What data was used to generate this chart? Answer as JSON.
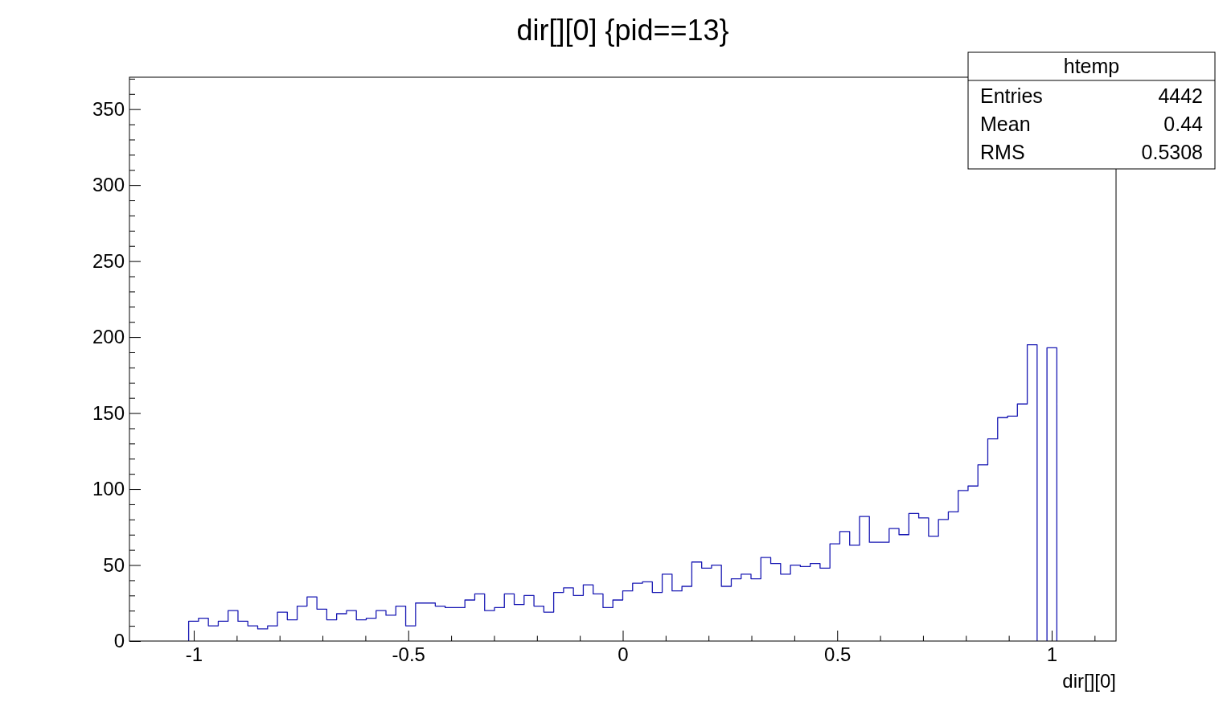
{
  "chart_data": {
    "type": "histogram",
    "title": "dir[][0] {pid==13}",
    "xlabel": "dir[][0]",
    "bins": [
      -1.012,
      -0.989,
      -0.966,
      -0.943,
      -0.92,
      -0.897,
      -0.874,
      -0.851,
      -0.828,
      -0.805,
      -0.782,
      -0.759,
      -0.736,
      -0.713,
      -0.69,
      -0.667,
      -0.644,
      -0.621,
      -0.598,
      -0.575,
      -0.552,
      -0.529,
      -0.506,
      -0.483,
      -0.46,
      -0.437,
      -0.414,
      -0.391,
      -0.368,
      -0.345,
      -0.322,
      -0.299,
      -0.276,
      -0.253,
      -0.23,
      -0.207,
      -0.184,
      -0.161,
      -0.138,
      -0.115,
      -0.092,
      -0.069,
      -0.046,
      -0.023,
      0,
      0.023,
      0.046,
      0.069,
      0.092,
      0.115,
      0.138,
      0.161,
      0.184,
      0.207,
      0.23,
      0.253,
      0.276,
      0.299,
      0.322,
      0.345,
      0.368,
      0.391,
      0.414,
      0.437,
      0.46,
      0.483,
      0.506,
      0.529,
      0.552,
      0.575,
      0.598,
      0.621,
      0.644,
      0.667,
      0.69,
      0.713,
      0.736,
      0.759,
      0.782,
      0.805,
      0.828,
      0.851,
      0.874,
      0.897,
      0.92,
      0.943,
      0.966,
      0.989,
      1.012
    ],
    "values": [
      13,
      15,
      10,
      13,
      20,
      13,
      10,
      8,
      10,
      19,
      14,
      23,
      29,
      21,
      14,
      18,
      20,
      14,
      15,
      20,
      17,
      23,
      10,
      25,
      25,
      23,
      22,
      22,
      27,
      31,
      20,
      22,
      31,
      24,
      30,
      23,
      19,
      32,
      35,
      30,
      37,
      31,
      22,
      27,
      33,
      38,
      39,
      32,
      44,
      33,
      36,
      52,
      48,
      50,
      36,
      41,
      44,
      41,
      55,
      51,
      44,
      50,
      49,
      51,
      48,
      64,
      72,
      63,
      82,
      65,
      65,
      74,
      70,
      84,
      81,
      69,
      80,
      85,
      99,
      102,
      116,
      133,
      147,
      148,
      156,
      195,
      null,
      193
    ],
    "color": "#1a1ab4",
    "xlim": [
      -1.15,
      1.15
    ],
    "xticks": [
      -1,
      {
        "value": -0.9,
        "label": null
      },
      {
        "value": -0.8,
        "label": null
      },
      {
        "value": -0.7,
        "label": null
      },
      {
        "value": -0.6,
        "label": null
      },
      -0.5,
      {
        "value": -0.4,
        "label": null
      },
      {
        "value": -0.3,
        "label": null
      },
      {
        "value": -0.2,
        "label": null
      },
      {
        "value": -0.1,
        "label": null
      },
      0,
      {
        "value": 0.1,
        "label": null
      },
      {
        "value": 0.2,
        "label": null
      },
      {
        "value": 0.3,
        "label": null
      },
      {
        "value": 0.4,
        "label": null
      },
      0.5,
      {
        "value": 0.6,
        "label": null
      },
      {
        "value": 0.7,
        "label": null
      },
      {
        "value": 0.8,
        "label": null
      },
      {
        "value": 0.9,
        "label": null
      },
      1,
      {
        "value": 1.1,
        "label": null
      }
    ],
    "ylim": [
      0,
      371
    ],
    "yticks": [
      0,
      {
        "value": 10,
        "label": null
      },
      {
        "value": 20,
        "label": null
      },
      {
        "value": 30,
        "label": null
      },
      {
        "value": 40,
        "label": null
      },
      50,
      {
        "value": 60,
        "label": null
      },
      {
        "value": 70,
        "label": null
      },
      {
        "value": 80,
        "label": null
      },
      {
        "value": 90,
        "label": null
      },
      100,
      {
        "value": 110,
        "label": null
      },
      {
        "value": 120,
        "label": null
      },
      {
        "value": 130,
        "label": null
      },
      {
        "value": 140,
        "label": null
      },
      150,
      {
        "value": 160,
        "label": null
      },
      {
        "value": 170,
        "label": null
      },
      {
        "value": 180,
        "label": null
      },
      {
        "value": 190,
        "label": null
      },
      200,
      {
        "value": 210,
        "label": null
      },
      {
        "value": 220,
        "label": null
      },
      {
        "value": 230,
        "label": null
      },
      {
        "value": 240,
        "label": null
      },
      250,
      {
        "value": 260,
        "label": null
      },
      {
        "value": 270,
        "label": null
      },
      {
        "value": 280,
        "label": null
      },
      {
        "value": 290,
        "label": null
      },
      300,
      {
        "value": 310,
        "label": null
      },
      {
        "value": 320,
        "label": null
      },
      {
        "value": 330,
        "label": null
      },
      {
        "value": 340,
        "label": null
      },
      350,
      {
        "value": 360,
        "label": null
      },
      {
        "value": 370,
        "label": null
      }
    ],
    "grid": false,
    "annotations": [
      "htemp",
      "Entries",
      "4442",
      "Mean",
      "0.44",
      "RMS",
      "0.5308"
    ]
  }
}
